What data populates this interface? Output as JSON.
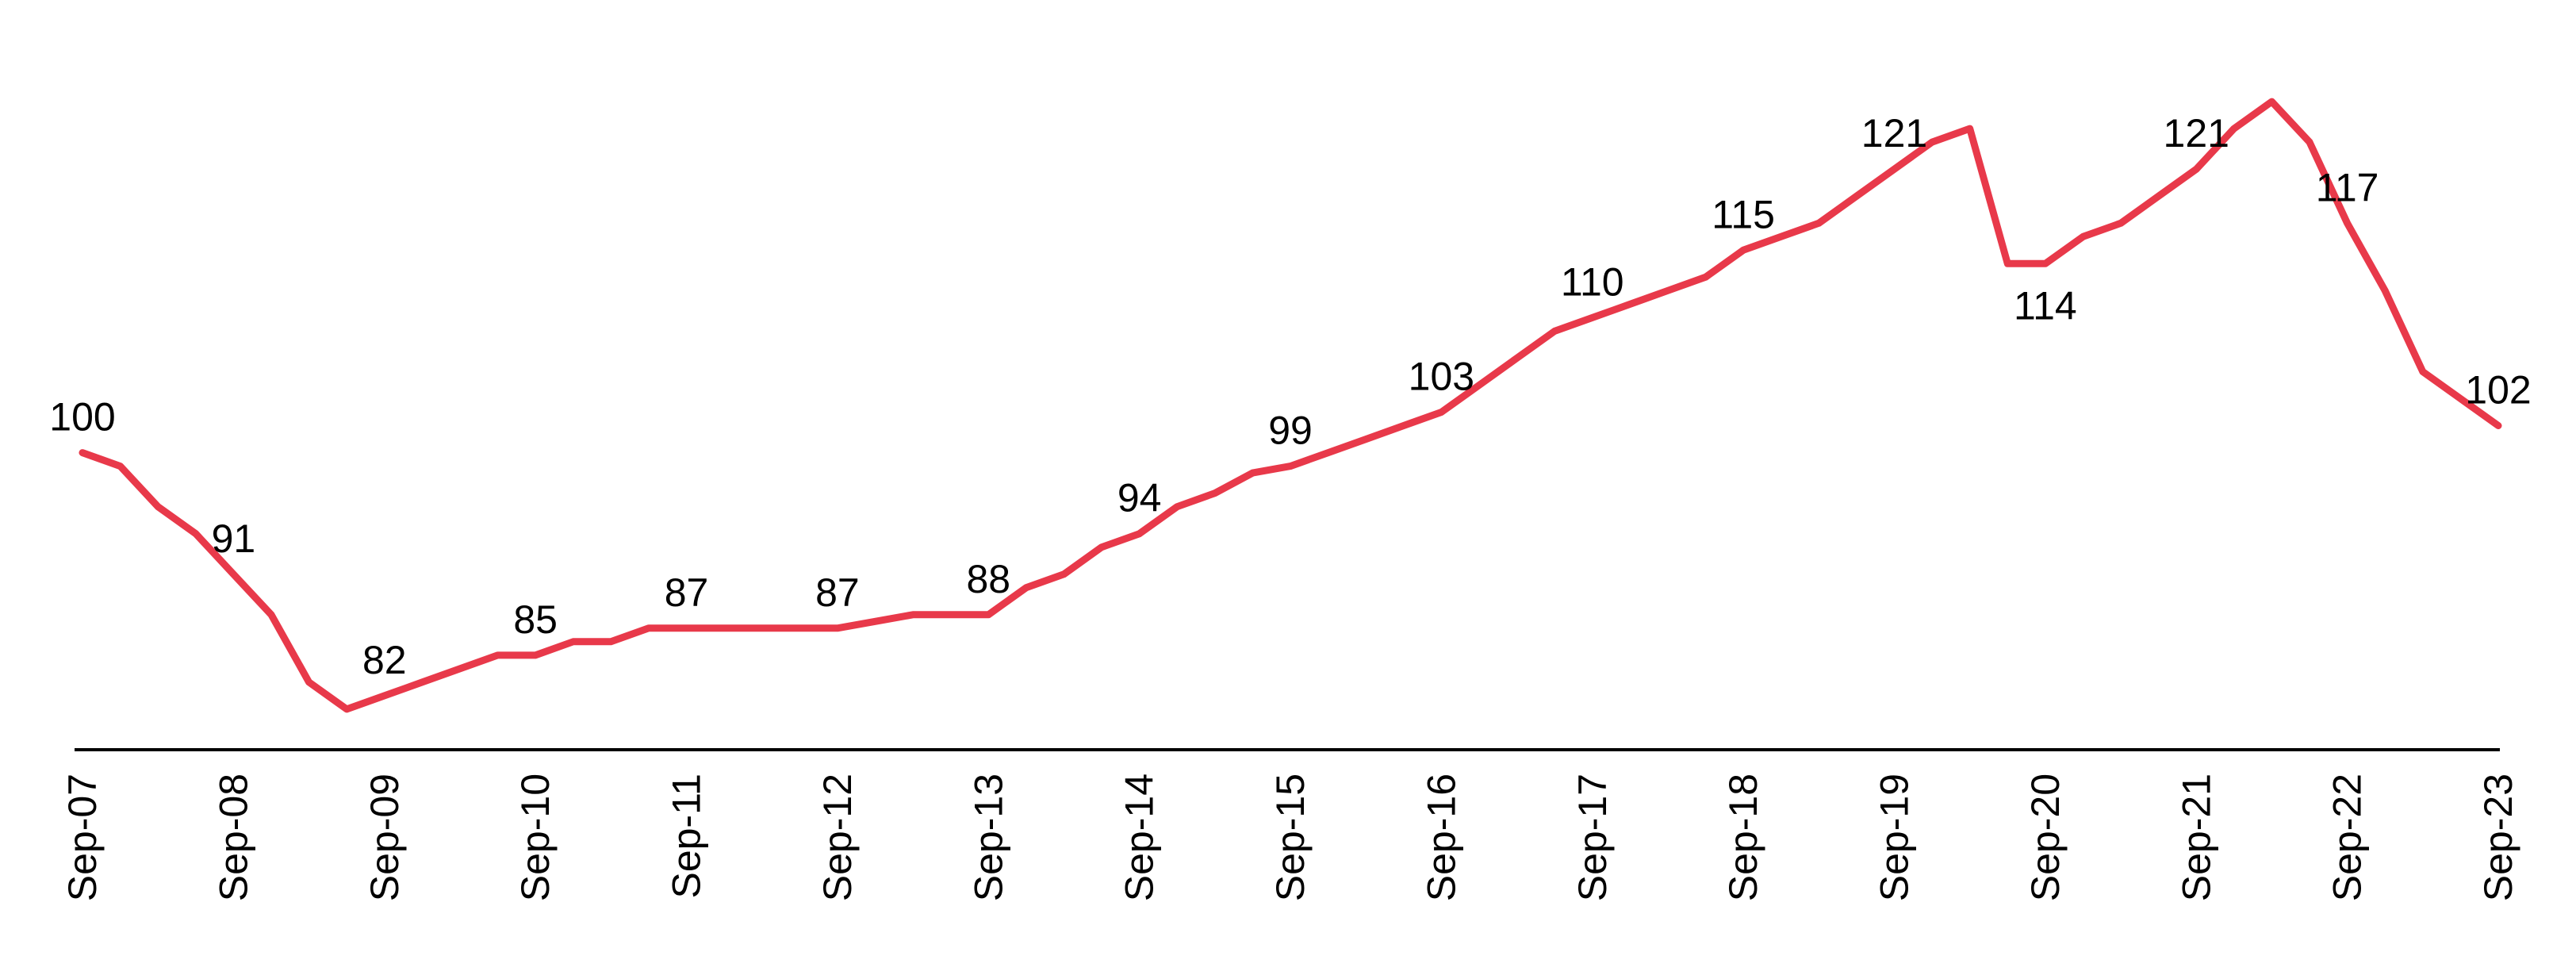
{
  "chart_data": {
    "type": "line",
    "x_ticks": [
      "Sep-07",
      "Sep-08",
      "Sep-09",
      "Sep-10",
      "Sep-11",
      "Sep-12",
      "Sep-13",
      "Sep-14",
      "Sep-15",
      "Sep-16",
      "Sep-17",
      "Sep-18",
      "Sep-19",
      "Sep-20",
      "Sep-21",
      "Sep-22",
      "Sep-23"
    ],
    "series": [
      {
        "color": "#E8394A",
        "points": [
          [
            "Sep-07",
            100
          ],
          [
            "Dec-07",
            99
          ],
          [
            "Mar-08",
            96
          ],
          [
            "Jun-08",
            94
          ],
          [
            "Sep-08",
            91
          ],
          [
            "Dec-08",
            88
          ],
          [
            "Mar-09",
            83
          ],
          [
            "Jun-09",
            81
          ],
          [
            "Sep-09",
            82
          ],
          [
            "Dec-09",
            83
          ],
          [
            "Mar-10",
            84
          ],
          [
            "Jun-10",
            85
          ],
          [
            "Sep-10",
            85
          ],
          [
            "Dec-10",
            86
          ],
          [
            "Mar-11",
            86
          ],
          [
            "Jun-11",
            87
          ],
          [
            "Sep-11",
            87
          ],
          [
            "Dec-11",
            87
          ],
          [
            "Mar-12",
            87
          ],
          [
            "Jun-12",
            87
          ],
          [
            "Sep-12",
            87
          ],
          [
            "Dec-12",
            87.5
          ],
          [
            "Mar-13",
            88
          ],
          [
            "Jun-13",
            88
          ],
          [
            "Sep-13",
            88
          ],
          [
            "Dec-13",
            90
          ],
          [
            "Mar-14",
            91
          ],
          [
            "Jun-14",
            93
          ],
          [
            "Sep-14",
            94
          ],
          [
            "Dec-14",
            96
          ],
          [
            "Mar-15",
            97
          ],
          [
            "Jun-15",
            98.5
          ],
          [
            "Sep-15",
            99
          ],
          [
            "Dec-15",
            100
          ],
          [
            "Mar-16",
            101
          ],
          [
            "Jun-16",
            102
          ],
          [
            "Sep-16",
            103
          ],
          [
            "Dec-16",
            105
          ],
          [
            "Mar-17",
            107
          ],
          [
            "Jun-17",
            109
          ],
          [
            "Sep-17",
            110
          ],
          [
            "Dec-17",
            111
          ],
          [
            "Mar-18",
            112
          ],
          [
            "Jun-18",
            113
          ],
          [
            "Sep-18",
            115
          ],
          [
            "Dec-18",
            116
          ],
          [
            "Mar-19",
            117
          ],
          [
            "Jun-19",
            119
          ],
          [
            "Sep-19",
            121
          ],
          [
            "Dec-19",
            123
          ],
          [
            "Mar-20",
            124
          ],
          [
            "Jun-20",
            114
          ],
          [
            "Sep-20",
            114
          ],
          [
            "Dec-20",
            116
          ],
          [
            "Mar-21",
            117
          ],
          [
            "Jun-21",
            119
          ],
          [
            "Sep-21",
            121
          ],
          [
            "Dec-21",
            124
          ],
          [
            "Mar-22",
            126
          ],
          [
            "Jun-22",
            123
          ],
          [
            "Sep-22",
            117
          ],
          [
            "Dec-22",
            112
          ],
          [
            "Mar-23",
            106
          ],
          [
            "Jun-23",
            104
          ],
          [
            "Sep-23",
            102
          ]
        ]
      }
    ],
    "data_labels": [
      {
        "x": "Sep-07",
        "value": "100",
        "position": "above"
      },
      {
        "x": "Sep-08",
        "value": "91",
        "position": "above"
      },
      {
        "x": "Sep-09",
        "value": "82",
        "position": "above"
      },
      {
        "x": "Sep-10",
        "value": "85",
        "position": "above"
      },
      {
        "x": "Sep-11",
        "value": "87",
        "position": "above"
      },
      {
        "x": "Sep-12",
        "value": "87",
        "position": "above"
      },
      {
        "x": "Sep-13",
        "value": "88",
        "position": "above"
      },
      {
        "x": "Sep-14",
        "value": "94",
        "position": "above"
      },
      {
        "x": "Sep-15",
        "value": "99",
        "position": "above"
      },
      {
        "x": "Sep-16",
        "value": "103",
        "position": "above"
      },
      {
        "x": "Sep-17",
        "value": "110",
        "position": "above"
      },
      {
        "x": "Sep-18",
        "value": "115",
        "position": "above"
      },
      {
        "x": "Sep-19",
        "value": "121",
        "position": "above"
      },
      {
        "x": "Sep-20",
        "value": "114",
        "position": "below"
      },
      {
        "x": "Sep-21",
        "value": "121",
        "position": "above"
      },
      {
        "x": "Sep-22",
        "value": "117",
        "position": "above"
      },
      {
        "x": "Sep-23",
        "value": "102",
        "position": "above"
      }
    ],
    "xlabel": "",
    "ylabel": "",
    "ylim": [
      78,
      130
    ],
    "grid": false,
    "legend": "none",
    "y_axis_visible": false
  }
}
